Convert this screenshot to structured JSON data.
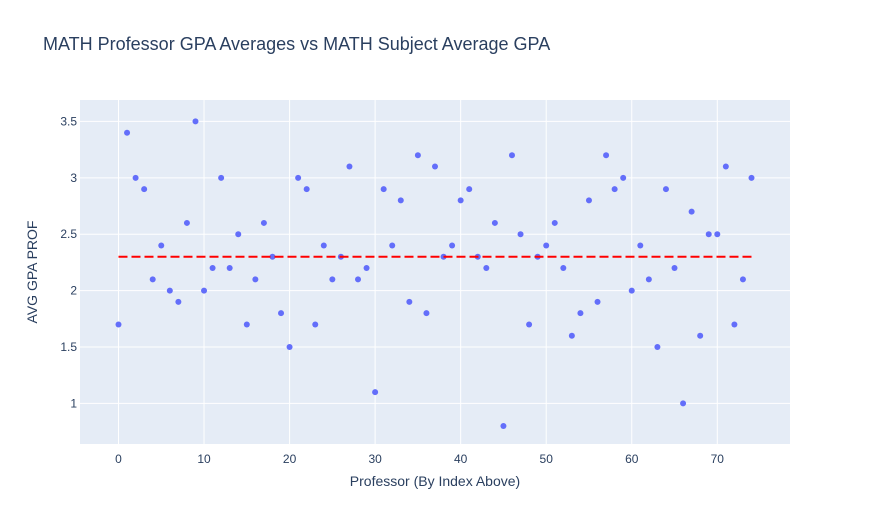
{
  "chart_data": {
    "type": "scatter",
    "title": "MATH Professor GPA Averages vs MATH Subject Average GPA",
    "xlabel": "Professor (By Index Above)",
    "ylabel": "AVG GPA PROF",
    "xlim": [
      -4.5,
      78.5
    ],
    "ylim": [
      0.64,
      3.69
    ],
    "x_ticks": [
      0,
      10,
      20,
      30,
      40,
      50,
      60,
      70
    ],
    "y_ticks": [
      1,
      1.5,
      2,
      2.5,
      3,
      3.5
    ],
    "grid": true,
    "legend": "none",
    "series": [
      {
        "kind": "markers",
        "color": "#636efa",
        "x": [
          0,
          1,
          2,
          3,
          4,
          5,
          6,
          7,
          8,
          9,
          10,
          11,
          12,
          13,
          14,
          15,
          16,
          17,
          18,
          19,
          20,
          21,
          22,
          23,
          24,
          25,
          26,
          27,
          28,
          29,
          30,
          31,
          32,
          33,
          34,
          35,
          36,
          37,
          38,
          39,
          40,
          41,
          42,
          43,
          44,
          45,
          46,
          47,
          48,
          49,
          50,
          51,
          52,
          53,
          54,
          55,
          56,
          57,
          58,
          59,
          60,
          61,
          62,
          63,
          64,
          65,
          66,
          67,
          68,
          69,
          70,
          71,
          72,
          73,
          74
        ],
        "y": [
          1.7,
          3.4,
          3.0,
          2.9,
          2.1,
          2.4,
          2.0,
          1.9,
          2.6,
          3.5,
          2.0,
          2.2,
          3.0,
          2.2,
          2.5,
          1.7,
          2.1,
          2.6,
          2.3,
          1.8,
          1.5,
          3.0,
          2.9,
          1.7,
          2.4,
          2.1,
          2.3,
          3.1,
          2.1,
          2.2,
          1.1,
          2.9,
          2.4,
          2.8,
          1.9,
          3.2,
          1.8,
          3.1,
          2.3,
          2.4,
          2.8,
          2.9,
          2.3,
          2.2,
          2.6,
          0.8,
          3.2,
          2.5,
          1.7,
          2.3,
          2.4,
          2.6,
          2.2,
          1.6,
          1.8,
          2.8,
          1.9,
          3.2,
          2.9,
          3.0,
          2.0,
          2.4,
          2.1,
          1.5,
          2.9,
          2.2,
          1.0,
          2.7,
          1.6,
          2.5,
          2.5,
          3.1,
          1.7,
          2.1,
          3.0
        ]
      },
      {
        "kind": "dashed-line",
        "color": "#ff0000",
        "x": [
          0,
          74
        ],
        "y": [
          2.3,
          2.3
        ]
      }
    ]
  }
}
